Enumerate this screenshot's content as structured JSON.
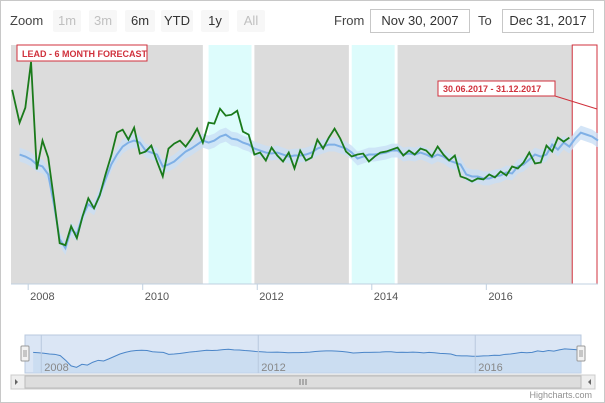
{
  "zoom": {
    "label": "Zoom",
    "buttons": [
      {
        "label": "1m",
        "state": "disabled"
      },
      {
        "label": "3m",
        "state": "disabled"
      },
      {
        "label": "6m",
        "state": "normal"
      },
      {
        "label": "YTD",
        "state": "normal"
      },
      {
        "label": "1y",
        "state": "normal"
      },
      {
        "label": "All",
        "state": "disabled"
      }
    ]
  },
  "range": {
    "from_label": "From",
    "from_value": "Nov 30, 2007",
    "to_label": "To",
    "to_value": "Dec 31, 2017"
  },
  "credits": "Highcharts.com",
  "colors": {
    "actual": "#1a7a1a",
    "forecast": "#7fb0e6",
    "grey_band": "#dcdcdc",
    "cyan_band": "#ddfcfc",
    "annotation": "#d0313c",
    "navigator_fill": "#dbe6f5",
    "navigator_line": "#4a85c8"
  },
  "chart_data": {
    "type": "line",
    "title": "LEAD - 6 MONTH FORECAST",
    "annotation": "30.06.2017 - 31.12.2017",
    "x_ticks": [
      "2008",
      "2010",
      "2012",
      "2014",
      "2016"
    ],
    "navigator_ticks": [
      "2008",
      "2012",
      "2016"
    ],
    "xlim": [
      2007.7,
      2017.95
    ],
    "bands": [
      {
        "kind": "grey",
        "from": 2007.7,
        "to": 2011.05
      },
      {
        "kind": "cyan",
        "from": 2011.15,
        "to": 2011.9
      },
      {
        "kind": "grey",
        "from": 2011.95,
        "to": 2013.6
      },
      {
        "kind": "cyan",
        "from": 2013.65,
        "to": 2014.4
      },
      {
        "kind": "grey",
        "from": 2014.45,
        "to": 2017.5
      }
    ],
    "forecast_window": {
      "from": 2017.5,
      "to": 2018.0
    },
    "series": [
      {
        "name": "actual",
        "x": [
          2007.72,
          2007.85,
          2007.95,
          2008.05,
          2008.15,
          2008.25,
          2008.35,
          2008.45,
          2008.55,
          2008.65,
          2008.75,
          2008.85,
          2008.95,
          2009.05,
          2009.15,
          2009.25,
          2009.35,
          2009.45,
          2009.55,
          2009.65,
          2009.75,
          2009.85,
          2009.95,
          2010.05,
          2010.15,
          2010.25,
          2010.35,
          2010.45,
          2010.55,
          2010.65,
          2010.75,
          2010.85,
          2010.95,
          2011.05,
          2011.15,
          2011.25,
          2011.35,
          2011.45,
          2011.55,
          2011.65,
          2011.75,
          2011.85,
          2011.95,
          2012.05,
          2012.15,
          2012.25,
          2012.35,
          2012.45,
          2012.55,
          2012.65,
          2012.75,
          2012.85,
          2012.95,
          2013.05,
          2013.15,
          2013.25,
          2013.35,
          2013.45,
          2013.55,
          2013.65,
          2013.75,
          2013.85,
          2013.95,
          2014.05,
          2014.15,
          2014.25,
          2014.35,
          2014.45,
          2014.55,
          2014.65,
          2014.75,
          2014.85,
          2014.95,
          2015.05,
          2015.15,
          2015.25,
          2015.35,
          2015.45,
          2015.55,
          2015.65,
          2015.75,
          2015.85,
          2015.95,
          2016.05,
          2016.15,
          2016.25,
          2016.35,
          2016.45,
          2016.55,
          2016.65,
          2016.75,
          2016.85,
          2016.95,
          2017.05,
          2017.15,
          2017.25,
          2017.35,
          2017.45
        ],
        "y": [
          3150,
          2820,
          2970,
          3430,
          2350,
          2640,
          2470,
          2050,
          1610,
          1590,
          1780,
          1660,
          1880,
          2060,
          1960,
          2090,
          2300,
          2490,
          2720,
          2750,
          2650,
          2770,
          2510,
          2530,
          2590,
          2430,
          2280,
          2560,
          2610,
          2640,
          2580,
          2660,
          2760,
          2620,
          2820,
          2810,
          2960,
          2890,
          2900,
          2940,
          2730,
          2700,
          2500,
          2520,
          2440,
          2570,
          2490,
          2430,
          2520,
          2360,
          2540,
          2440,
          2470,
          2650,
          2560,
          2670,
          2760,
          2660,
          2530,
          2480,
          2500,
          2510,
          2430,
          2480,
          2520,
          2530,
          2550,
          2570,
          2490,
          2540,
          2500,
          2560,
          2540,
          2480,
          2580,
          2500,
          2440,
          2490,
          2280,
          2260,
          2230,
          2260,
          2250,
          2300,
          2270,
          2330,
          2290,
          2380,
          2360,
          2420,
          2520,
          2410,
          2420,
          2590,
          2530,
          2670,
          2630,
          2670
        ]
      },
      {
        "name": "forecast",
        "x": [
          2007.85,
          2007.95,
          2008.05,
          2008.15,
          2008.25,
          2008.35,
          2008.45,
          2008.55,
          2008.65,
          2008.75,
          2008.85,
          2008.95,
          2009.05,
          2009.15,
          2009.25,
          2009.35,
          2009.45,
          2009.55,
          2009.65,
          2009.75,
          2009.85,
          2009.95,
          2010.05,
          2010.15,
          2010.25,
          2010.35,
          2010.45,
          2010.55,
          2010.65,
          2010.75,
          2010.85,
          2010.95,
          2011.05,
          2011.15,
          2011.25,
          2011.35,
          2011.45,
          2011.55,
          2011.65,
          2011.75,
          2011.85,
          2011.95,
          2012.05,
          2012.15,
          2012.25,
          2012.35,
          2012.45,
          2012.55,
          2012.65,
          2012.75,
          2012.85,
          2012.95,
          2013.05,
          2013.15,
          2013.25,
          2013.35,
          2013.45,
          2013.55,
          2013.65,
          2013.75,
          2013.85,
          2013.95,
          2014.05,
          2014.15,
          2014.25,
          2014.35,
          2014.45,
          2014.55,
          2014.65,
          2014.75,
          2014.85,
          2014.95,
          2015.05,
          2015.15,
          2015.25,
          2015.35,
          2015.45,
          2015.55,
          2015.65,
          2015.75,
          2015.85,
          2015.95,
          2016.05,
          2016.15,
          2016.25,
          2016.35,
          2016.45,
          2016.55,
          2016.65,
          2016.75,
          2016.85,
          2016.95,
          2017.05,
          2017.15,
          2017.25,
          2017.35,
          2017.45,
          2017.55,
          2017.65,
          2017.75,
          2017.85,
          2017.95
        ],
        "y": [
          2500,
          2480,
          2450,
          2400,
          2380,
          2300,
          2000,
          1650,
          1560,
          1750,
          1700,
          1880,
          2000,
          1960,
          2100,
          2250,
          2400,
          2500,
          2580,
          2620,
          2640,
          2620,
          2540,
          2520,
          2500,
          2380,
          2400,
          2430,
          2480,
          2530,
          2560,
          2600,
          2640,
          2620,
          2640,
          2680,
          2700,
          2660,
          2650,
          2620,
          2600,
          2560,
          2540,
          2520,
          2510,
          2520,
          2500,
          2480,
          2490,
          2490,
          2500,
          2520,
          2560,
          2580,
          2600,
          2600,
          2580,
          2560,
          2520,
          2460,
          2480,
          2500,
          2500,
          2510,
          2520,
          2540,
          2540,
          2500,
          2510,
          2500,
          2520,
          2500,
          2470,
          2500,
          2480,
          2440,
          2420,
          2400,
          2300,
          2280,
          2280,
          2260,
          2260,
          2280,
          2290,
          2320,
          2310,
          2380,
          2400,
          2450,
          2500,
          2480,
          2500,
          2600,
          2550,
          2620,
          2580,
          2660,
          2720,
          2700,
          2680,
          2640
        ]
      }
    ],
    "ylim": [
      1200,
      3600
    ],
    "grid": false,
    "legend": "none"
  }
}
